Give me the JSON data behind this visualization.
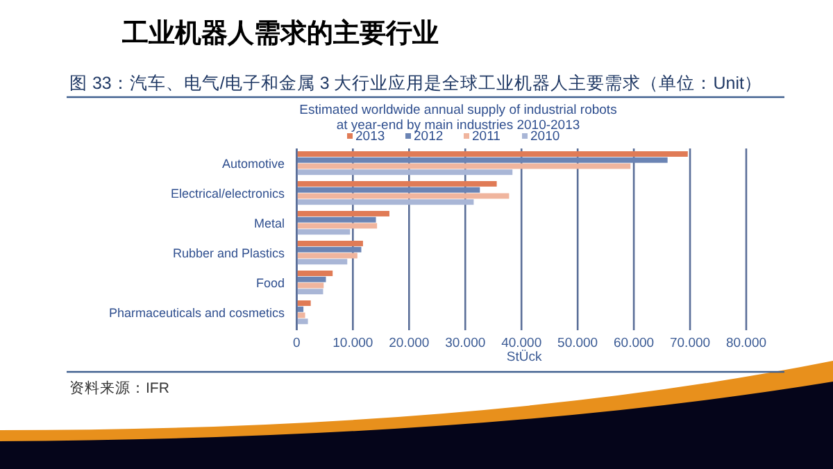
{
  "chart_data": {
    "type": "bar",
    "orientation": "horizontal",
    "title": "工业机器人需求的主要行业",
    "subtitle": "图 33：汽车、电气/电子和金属 3 大行业应用是全球工业机器人主要需求（单位：Unit）",
    "annotations": [
      "Estimated worldwide annual supply of industrial robots at year-end by main industries 2010-2013",
      "资料来源：IFR"
    ],
    "xlabel": "StÜck",
    "categories": [
      "Automotive",
      "Electrical/electronics",
      "Metal",
      "Rubber and Plastics",
      "Food",
      "Pharmaceuticals and cosmetics"
    ],
    "series": [
      {
        "name": "2013",
        "color": "#e07b56",
        "values": [
          69600,
          35600,
          16500,
          11800,
          6400,
          2500
        ]
      },
      {
        "name": "2012",
        "color": "#6b84b4",
        "values": [
          66000,
          32600,
          14100,
          11500,
          5200,
          1200
        ]
      },
      {
        "name": "2011",
        "color": "#f0b59e",
        "values": [
          59400,
          37800,
          14300,
          10800,
          4800,
          1500
        ]
      },
      {
        "name": "2010",
        "color": "#a9b6d6",
        "values": [
          38400,
          31500,
          9500,
          9000,
          4700,
          2000
        ]
      }
    ],
    "xlim": [
      0,
      80000
    ],
    "xticks": [
      0,
      {
        "value": 10000,
        "label": "10.000"
      },
      {
        "value": 20000,
        "label": "20.000"
      },
      {
        "value": 30000,
        "label": "30.000"
      },
      {
        "value": 40000,
        "label": "40.000"
      },
      {
        "value": 50000,
        "label": "50.000"
      },
      {
        "value": 60000,
        "label": "60.000"
      },
      {
        "value": 70000,
        "label": "70.000"
      },
      {
        "value": 80000,
        "label": "80.000"
      }
    ],
    "grid": "x",
    "legend": "top"
  }
}
